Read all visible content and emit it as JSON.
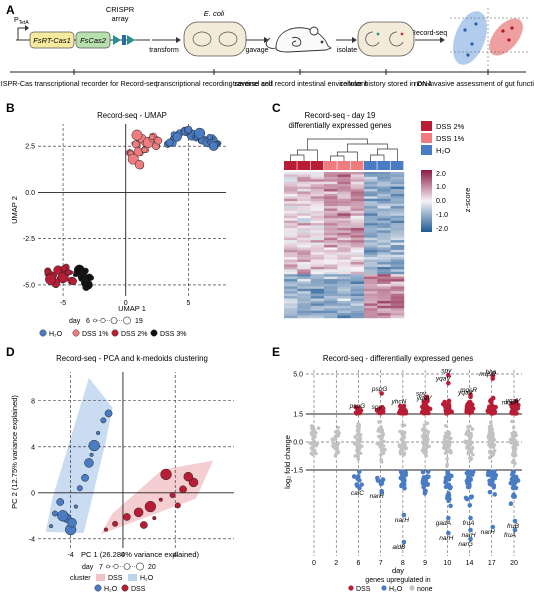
{
  "panels": {
    "A": {
      "letter": "A",
      "promoter": "P",
      "promoter_sub": "TetA",
      "gene1": "FsRT-Cas1",
      "gene2": "FsCas2",
      "array_label_1": "CRISPR",
      "array_label_2": "array",
      "organism": "E. coli",
      "arrows": [
        "transform",
        "gavage",
        "isolate",
        "Record-seq"
      ],
      "captions": [
        "CRISPR-Cas transcriptional recorder for Record-seq",
        "transcriptional recording sentinel cell",
        "traverse and record intestinal environment",
        "cellular history stored in DNA",
        "non-invasive assessment of gut function"
      ]
    },
    "B": {
      "letter": "B",
      "title": "Record-seq - UMAP",
      "xlabel": "UMAP 1",
      "ylabel": "UMAP 2",
      "legend_day_label": "day",
      "legend_day_min": "6",
      "legend_day_max": "19",
      "legend_groups": [
        "H₂O",
        "DSS 1%",
        "DSS 2%",
        "DSS 3%"
      ]
    },
    "C": {
      "letter": "C",
      "title_1": "Record-seq - day 19",
      "title_2": "differentially expressed genes",
      "legend_groups": [
        "DSS 2%",
        "DSS 1%",
        "H₂O"
      ],
      "scale_label": "z-score",
      "scale_ticks": [
        "2.0",
        "1.0",
        "0.0",
        "-1.0",
        "-2.0"
      ]
    },
    "D": {
      "letter": "D",
      "title": "Record-seq - PCA and k-medoids clustering",
      "xlabel": "PC 1 (26.284% variance explained)",
      "ylabel": "PC 2 (12.75% variance explained)",
      "legend_day_label": "day",
      "legend_day_min": "7",
      "legend_day_max": "20",
      "legend_cluster_label": "cluster",
      "legend_clusters": [
        "DSS",
        "H₂O"
      ],
      "legend_groups": [
        "H₂O",
        "DSS"
      ]
    },
    "E": {
      "letter": "E",
      "title": "Record-seq - differentially expressed genes",
      "xlabel": "day",
      "ylabel": "log₂ fold change",
      "legend_title": "genes upregulated in",
      "legend_groups": [
        "DSS",
        "H₂O",
        "none"
      ]
    }
  },
  "colors": {
    "h2o": "#4a7cc4",
    "dss1": "#ef7d80",
    "dss2": "#b81d35",
    "dss3": "#111111",
    "none": "#c2c2c2",
    "h2o_hull": "#bcd3ee",
    "dss_hull": "#f2c2c6"
  },
  "chart_data": [
    {
      "type": "scatter",
      "panel": "B",
      "xlabel": "UMAP 1",
      "ylabel": "UMAP 2",
      "xlim": [
        -7,
        8
      ],
      "ylim": [
        -5.6,
        3.7
      ],
      "x_ticks": [
        -5,
        0,
        5
      ],
      "y_ticks": [
        -5.0,
        -2.5,
        0.0,
        2.5
      ],
      "series": [
        {
          "name": "H₂O",
          "points": [
            [
              3.8,
              2.9
            ],
            [
              4.3,
              3.2
            ],
            [
              4.8,
              3.3
            ],
            [
              5.3,
              3.1
            ],
            [
              5.7,
              3.0
            ],
            [
              6.1,
              2.8
            ],
            [
              6.5,
              2.7
            ],
            [
              6.9,
              2.8
            ],
            [
              7.2,
              2.6
            ],
            [
              5.0,
              3.4
            ],
            [
              4.1,
              3.0
            ],
            [
              5.9,
              3.2
            ],
            [
              6.7,
              3.0
            ],
            [
              3.5,
              2.7
            ],
            [
              7.0,
              2.5
            ]
          ]
        },
        {
          "name": "DSS 1%",
          "points": [
            [
              0.4,
              2.1
            ],
            [
              0.8,
              2.6
            ],
            [
              1.3,
              2.9
            ],
            [
              1.8,
              2.7
            ],
            [
              2.1,
              3.0
            ],
            [
              2.4,
              2.5
            ],
            [
              1.0,
              2.2
            ],
            [
              0.6,
              1.8
            ],
            [
              1.5,
              2.3
            ],
            [
              2.6,
              2.8
            ],
            [
              1.1,
              1.5
            ],
            [
              0.9,
              3.1
            ]
          ]
        },
        {
          "name": "DSS 2%",
          "points": [
            [
              -6.2,
              -4.3
            ],
            [
              -5.8,
              -4.5
            ],
            [
              -5.4,
              -4.2
            ],
            [
              -5.0,
              -4.6
            ],
            [
              -4.6,
              -4.3
            ],
            [
              -4.2,
              -4.8
            ],
            [
              -5.6,
              -4.9
            ],
            [
              -6.0,
              -4.7
            ],
            [
              -4.9,
              -4.1
            ]
          ]
        },
        {
          "name": "DSS 3%",
          "points": [
            [
              -3.9,
              -4.4
            ],
            [
              -3.5,
              -4.6
            ],
            [
              -3.2,
              -4.9
            ],
            [
              -3.7,
              -4.2
            ],
            [
              -3.3,
              -4.3
            ],
            [
              -2.9,
              -4.6
            ],
            [
              -3.0,
              -5.0
            ]
          ]
        }
      ]
    },
    {
      "type": "heatmap",
      "panel": "C",
      "columns": [
        "DSS 2%",
        "DSS 2%",
        "DSS 2%",
        "DSS 1%",
        "DSS 1%",
        "DSS 1%",
        "H₂O",
        "H₂O",
        "H₂O"
      ],
      "zlim": [
        -2.0,
        2.0
      ]
    },
    {
      "type": "scatter",
      "panel": "D",
      "xlabel": "PC 1 (26.284% variance explained)",
      "ylabel": "PC 2 (12.75% variance explained)",
      "xlim": [
        -6.5,
        8.5
      ],
      "ylim": [
        -4.8,
        10.5
      ],
      "x_ticks": [
        -4,
        0,
        4
      ],
      "y_ticks": [
        -4,
        0,
        4,
        8
      ],
      "series": [
        {
          "name": "H₂O",
          "points": [
            [
              -5.5,
              -2.9
            ],
            [
              -5.2,
              -1.8
            ],
            [
              -4.8,
              -0.8
            ],
            [
              -4.3,
              -2.2
            ],
            [
              -4.0,
              -3.2
            ],
            [
              -3.6,
              -1.2
            ],
            [
              -3.3,
              0.4
            ],
            [
              -2.9,
              1.3
            ],
            [
              -2.6,
              2.6
            ],
            [
              -2.2,
              4.1
            ],
            [
              -1.9,
              5.2
            ],
            [
              -1.5,
              6.3
            ],
            [
              -1.1,
              6.9
            ],
            [
              -3.9,
              -2.6
            ],
            [
              -4.6,
              -2.0
            ],
            [
              -2.4,
              3.3
            ]
          ]
        },
        {
          "name": "DSS",
          "points": [
            [
              -1.3,
              -3.2
            ],
            [
              -0.6,
              -2.7
            ],
            [
              0.3,
              -2.1
            ],
            [
              1.2,
              -1.7
            ],
            [
              2.1,
              -1.2
            ],
            [
              2.9,
              -0.6
            ],
            [
              3.8,
              -0.2
            ],
            [
              4.6,
              0.3
            ],
            [
              5.4,
              0.9
            ],
            [
              3.3,
              1.6
            ],
            [
              2.4,
              -2.2
            ],
            [
              4.2,
              -1.1
            ],
            [
              1.6,
              -2.8
            ],
            [
              5.0,
              1.4
            ]
          ]
        }
      ]
    },
    {
      "type": "scatter",
      "panel": "E",
      "xlabel": "day",
      "ylabel": "log₂ fold change",
      "x_categories": [
        0,
        2,
        6,
        7,
        8,
        9,
        10,
        14,
        17,
        20
      ],
      "y_ticks": [
        -1.5,
        0.0,
        1.5,
        5.0
      ],
      "gene_labels": [
        {
          "day": 6,
          "gene": "pspG",
          "y": 1.8
        },
        {
          "day": 7,
          "gene": "spy",
          "y": 1.7
        },
        {
          "day": 7,
          "gene": "pspG",
          "y": 3.3
        },
        {
          "day": 8,
          "gene": "yhcN",
          "y": 2.2
        },
        {
          "day": 9,
          "gene": "yqaV",
          "y": 2.5
        },
        {
          "day": 9,
          "gene": "spy",
          "y": 2.9
        },
        {
          "day": 10,
          "gene": "spy",
          "y": 4.9
        },
        {
          "day": 10,
          "gene": "yqaV",
          "y": 4.2
        },
        {
          "day": 14,
          "gene": "mqsR",
          "y": 3.2
        },
        {
          "day": 14,
          "gene": "yqaV",
          "y": 3.0
        },
        {
          "day": 17,
          "gene": "hha",
          "y": 4.8
        },
        {
          "day": 17,
          "gene": "mqsR",
          "y": 4.6
        },
        {
          "day": 20,
          "gene": "yqaV",
          "y": 2.3
        },
        {
          "day": 20,
          "gene": "mqsA",
          "y": 2.1
        },
        {
          "day": 6,
          "gene": "caiC",
          "y": -2.1
        },
        {
          "day": 7,
          "gene": "narH",
          "y": -2.2
        },
        {
          "day": 8,
          "gene": "narH",
          "y": -3.0
        },
        {
          "day": 8,
          "gene": "aldB",
          "y": -3.9
        },
        {
          "day": 10,
          "gene": "narH",
          "y": -3.6
        },
        {
          "day": 10,
          "gene": "gadA",
          "y": -3.1
        },
        {
          "day": 14,
          "gene": "narH",
          "y": -3.5
        },
        {
          "day": 14,
          "gene": "narG",
          "y": -3.8
        },
        {
          "day": 14,
          "gene": "fruA",
          "y": -3.1
        },
        {
          "day": 17,
          "gene": "narH",
          "y": -3.4
        },
        {
          "day": 20,
          "gene": "fruB",
          "y": -3.2
        },
        {
          "day": 20,
          "gene": "fruA",
          "y": -3.5
        }
      ]
    }
  ]
}
